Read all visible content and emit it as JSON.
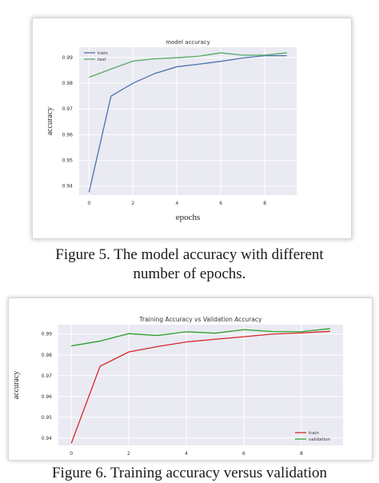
{
  "figures": [
    {
      "caption_lines": [
        "Figure 5. The model accuracy with different",
        "number of epochs."
      ],
      "chart_data": {
        "type": "line",
        "title": "model accuracy",
        "xlabel": "epochs",
        "ylabel": "accuracy",
        "xlim": [
          -0.45,
          9.45
        ],
        "ylim": [
          0.9365,
          0.994
        ],
        "xticks": [
          0,
          2,
          4,
          6,
          8
        ],
        "yticks": [
          0.94,
          0.95,
          0.96,
          0.97,
          0.98,
          0.99
        ],
        "ytick_labels": [
          "0.94",
          "0.95",
          "0.96",
          "0.97",
          "0.98",
          "0.99"
        ],
        "grid": true,
        "legend": "top-left",
        "x": [
          0,
          1,
          2,
          3,
          4,
          5,
          6,
          7,
          8,
          9
        ],
        "series": [
          {
            "name": "train",
            "color": "#4c72b0",
            "values": [
              0.9376,
              0.975,
              0.98,
              0.9838,
              0.9864,
              0.9874,
              0.9885,
              0.9898,
              0.9907,
              0.9907
            ]
          },
          {
            "name": "test",
            "color": "#55a868",
            "values": [
              0.9823,
              0.9855,
              0.9886,
              0.9895,
              0.9899,
              0.9905,
              0.9918,
              0.9909,
              0.9909,
              0.9918
            ]
          }
        ]
      }
    },
    {
      "caption_lines": [
        "Figure 6. Training accuracy versus validation"
      ],
      "chart_data": {
        "type": "line",
        "title": "Training Accuracy vs Validation Accuracy",
        "xlabel": "",
        "ylabel": "accuracy",
        "xlim": [
          -0.45,
          9.45
        ],
        "ylim": [
          0.9365,
          0.9945
        ],
        "xticks": [
          0,
          2,
          4,
          6,
          8
        ],
        "yticks": [
          0.94,
          0.95,
          0.96,
          0.97,
          0.98,
          0.99
        ],
        "ytick_labels": [
          "0.94",
          "0.95",
          "0.96",
          "0.97",
          "0.98",
          "0.99"
        ],
        "grid": true,
        "legend": "bottom-right",
        "x": [
          0,
          1,
          2,
          3,
          4,
          5,
          6,
          7,
          8,
          9
        ],
        "series": [
          {
            "name": "train",
            "color": "#d62728",
            "values": [
              0.9375,
              0.9745,
              0.9814,
              0.984,
              0.9862,
              0.9875,
              0.9887,
              0.99,
              0.9905,
              0.9913
            ]
          },
          {
            "name": "validation",
            "color": "#2ca02c",
            "values": [
              0.9843,
              0.9866,
              0.9902,
              0.9893,
              0.9911,
              0.9904,
              0.9921,
              0.9912,
              0.9911,
              0.9926
            ]
          }
        ]
      }
    }
  ]
}
